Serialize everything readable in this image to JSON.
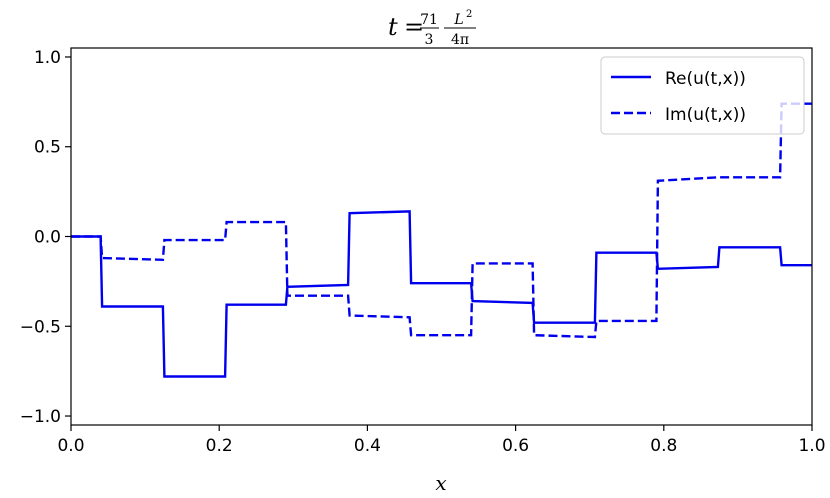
{
  "chart_data": {
    "type": "line",
    "title": {
      "prefix": "t",
      "eq": "=",
      "frac1_num": "71",
      "frac1_den": "3",
      "frac2_num": "L",
      "frac2_num_exp": "2",
      "frac2_den": "4π"
    },
    "xlabel": "x",
    "ylabel": "",
    "xlim": [
      0.0,
      1.0
    ],
    "ylim": [
      -1.05,
      1.05
    ],
    "xticks": [
      0.0,
      0.2,
      0.4,
      0.6,
      0.8,
      1.0
    ],
    "xtick_labels": [
      "0.0",
      "0.2",
      "0.4",
      "0.6",
      "0.8",
      "1.0"
    ],
    "yticks": [
      -1.0,
      -0.5,
      0.0,
      0.5,
      1.0
    ],
    "ytick_labels": [
      "−1.0",
      "−0.5",
      "0.0",
      "0.5",
      "1.0"
    ],
    "grid": false,
    "legend_position": "top-right",
    "color": "#0000ee",
    "series": [
      {
        "name": "Re(u(t,x))",
        "style": "solid",
        "x": [
          0.0,
          0.04,
          0.042,
          0.124,
          0.126,
          0.208,
          0.21,
          0.29,
          0.292,
          0.374,
          0.376,
          0.457,
          0.459,
          0.54,
          0.542,
          0.623,
          0.625,
          0.707,
          0.709,
          0.79,
          0.792,
          0.873,
          0.875,
          0.957,
          0.959,
          1.0
        ],
        "y": [
          0.0,
          0.0,
          -0.39,
          -0.39,
          -0.78,
          -0.78,
          -0.38,
          -0.38,
          -0.28,
          -0.27,
          0.13,
          0.14,
          -0.26,
          -0.26,
          -0.36,
          -0.37,
          -0.48,
          -0.48,
          -0.09,
          -0.09,
          -0.18,
          -0.17,
          -0.06,
          -0.06,
          -0.16,
          -0.16
        ]
      },
      {
        "name": "Im(u(t,x))",
        "style": "dashed",
        "x": [
          0.0,
          0.04,
          0.042,
          0.124,
          0.126,
          0.208,
          0.21,
          0.29,
          0.292,
          0.374,
          0.376,
          0.457,
          0.459,
          0.54,
          0.542,
          0.623,
          0.625,
          0.707,
          0.709,
          0.79,
          0.792,
          0.873,
          0.875,
          0.957,
          0.959,
          1.0
        ],
        "y": [
          0.0,
          0.0,
          -0.12,
          -0.13,
          -0.02,
          -0.02,
          0.08,
          0.08,
          -0.33,
          -0.33,
          -0.44,
          -0.45,
          -0.55,
          -0.55,
          -0.15,
          -0.15,
          -0.55,
          -0.56,
          -0.47,
          -0.47,
          0.31,
          0.33,
          0.33,
          0.33,
          0.74,
          0.74
        ]
      }
    ]
  }
}
